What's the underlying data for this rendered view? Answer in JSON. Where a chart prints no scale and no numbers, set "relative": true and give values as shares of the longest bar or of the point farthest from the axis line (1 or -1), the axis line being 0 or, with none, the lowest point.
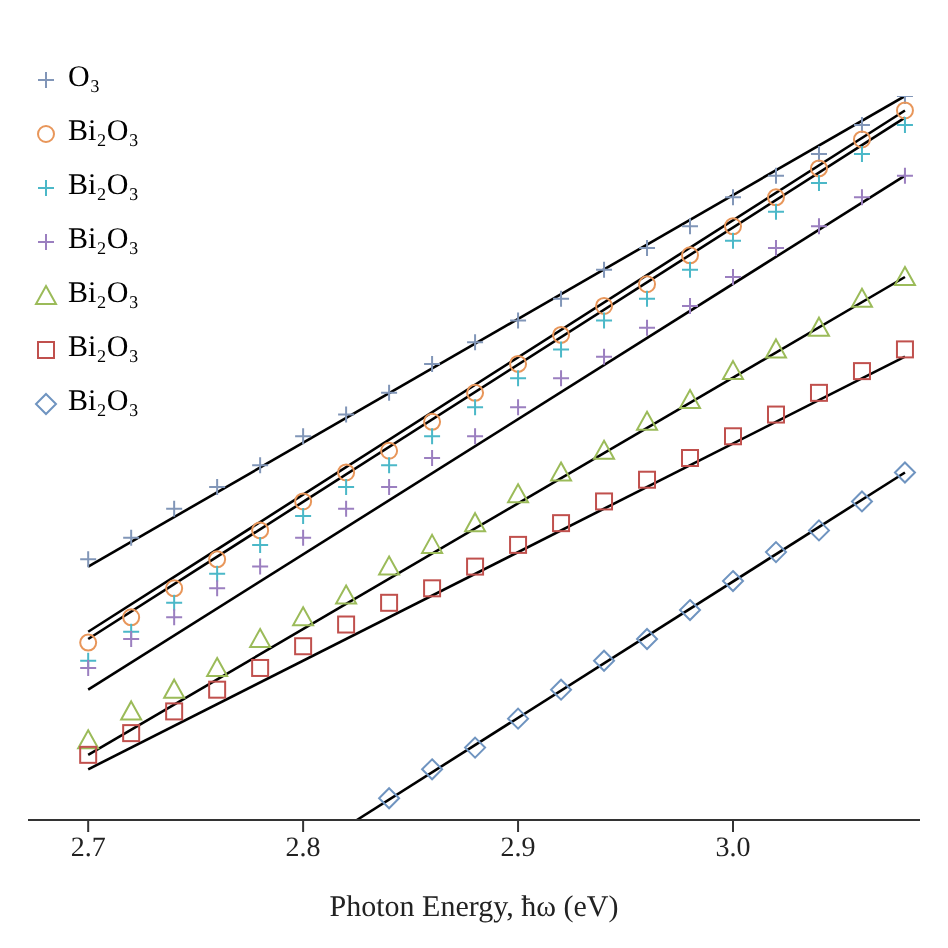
{
  "chart_data": {
    "type": "scatter",
    "xlabel": "Photon Energy, ħω (eV)",
    "relative": true,
    "xlim": [
      2.672,
      3.087
    ],
    "xticks": [
      2.7,
      2.8,
      2.9,
      {
        "value": 3,
        "label": "3.0"
      }
    ],
    "grid": false,
    "legend": "top left",
    "x": [
      2.7,
      2.72,
      2.74,
      2.76,
      2.78,
      2.8,
      2.82,
      2.84,
      2.86,
      2.88,
      2.9,
      2.92,
      2.94,
      2.96,
      2.98,
      3.0,
      3.02,
      3.04,
      3.06,
      3.08
    ],
    "series": [
      {
        "name": "O₃",
        "color": "#8196b8",
        "marker": "cross",
        "values": [
          0.36,
          0.39,
          0.43,
          0.46,
          0.49,
          0.53,
          0.56,
          0.59,
          0.63,
          0.66,
          0.69,
          0.72,
          0.76,
          0.79,
          0.82,
          0.86,
          0.89,
          0.92,
          0.96,
          1
        ]
      },
      {
        "name": "Bi₂O₃",
        "color": "#e8965a",
        "marker": "circle",
        "values": [
          0.245,
          0.28,
          0.32,
          0.36,
          0.4,
          0.44,
          0.48,
          0.51,
          0.55,
          0.59,
          0.63,
          0.67,
          0.71,
          0.74,
          0.78,
          0.82,
          0.86,
          0.9,
          0.94,
          0.98
        ]
      },
      {
        "name": "Bi₂O₃",
        "color": "#4bb8c8",
        "marker": "cross",
        "values": [
          0.22,
          0.26,
          0.3,
          0.34,
          0.38,
          0.42,
          0.46,
          0.49,
          0.53,
          0.57,
          0.61,
          0.65,
          0.69,
          0.72,
          0.76,
          0.8,
          0.84,
          0.88,
          0.92,
          0.96
        ]
      },
      {
        "name": "Bi₂O₃",
        "color": "#9b7fc0",
        "marker": "cross",
        "values": [
          0.21,
          0.25,
          0.28,
          0.32,
          0.35,
          0.39,
          0.43,
          0.46,
          0.5,
          0.53,
          0.57,
          0.61,
          0.64,
          0.68,
          0.71,
          0.75,
          0.79,
          0.82,
          0.86,
          0.89
        ]
      },
      {
        "name": "Bi₂O₃",
        "color": "#9bbb59",
        "marker": "triangle",
        "values": [
          0.11,
          0.15,
          0.18,
          0.21,
          0.25,
          0.28,
          0.31,
          0.35,
          0.38,
          0.41,
          0.45,
          0.48,
          0.51,
          0.55,
          0.58,
          0.62,
          0.65,
          0.68,
          0.72,
          0.75
        ]
      },
      {
        "name": "Bi₂O₃",
        "color": "#c0504d",
        "marker": "square",
        "values": [
          0.09,
          0.12,
          0.15,
          0.18,
          0.21,
          0.24,
          0.27,
          0.3,
          0.32,
          0.35,
          0.38,
          0.41,
          0.44,
          0.47,
          0.5,
          0.53,
          0.56,
          0.59,
          0.62,
          0.65
        ]
      },
      {
        "name": "Bi₂O₃",
        "color": "#6f94c0",
        "marker": "diamond",
        "values": [
          null,
          null,
          null,
          null,
          null,
          null,
          null,
          0.03,
          0.07,
          0.1,
          0.14,
          0.18,
          0.22,
          0.25,
          0.29,
          0.33,
          0.37,
          0.4,
          0.44,
          0.48
        ]
      },
      {
        "type": "line",
        "color": "#000000",
        "marker": "none",
        "x": [
          2.7,
          3.08
        ],
        "values": [
          0.35,
          1
        ]
      },
      {
        "type": "line",
        "color": "#000000",
        "marker": "none",
        "x": [
          2.7,
          3.08
        ],
        "values": [
          0.26,
          0.98
        ]
      },
      {
        "type": "line",
        "color": "#000000",
        "marker": "none",
        "x": [
          2.7,
          3.08
        ],
        "values": [
          0.25,
          0.97
        ]
      },
      {
        "type": "line",
        "color": "#000000",
        "marker": "none",
        "x": [
          2.7,
          3.08
        ],
        "values": [
          0.18,
          0.89
        ]
      },
      {
        "type": "line",
        "color": "#000000",
        "marker": "none",
        "x": [
          2.7,
          3.08
        ],
        "values": [
          0.09,
          0.75
        ]
      },
      {
        "type": "line",
        "color": "#000000",
        "marker": "none",
        "x": [
          2.7,
          3.08
        ],
        "values": [
          0.07,
          0.64
        ]
      },
      {
        "type": "line",
        "color": "#000000",
        "marker": "none",
        "x": [
          2.825,
          3.08
        ],
        "values": [
          0,
          0.48
        ]
      }
    ]
  }
}
